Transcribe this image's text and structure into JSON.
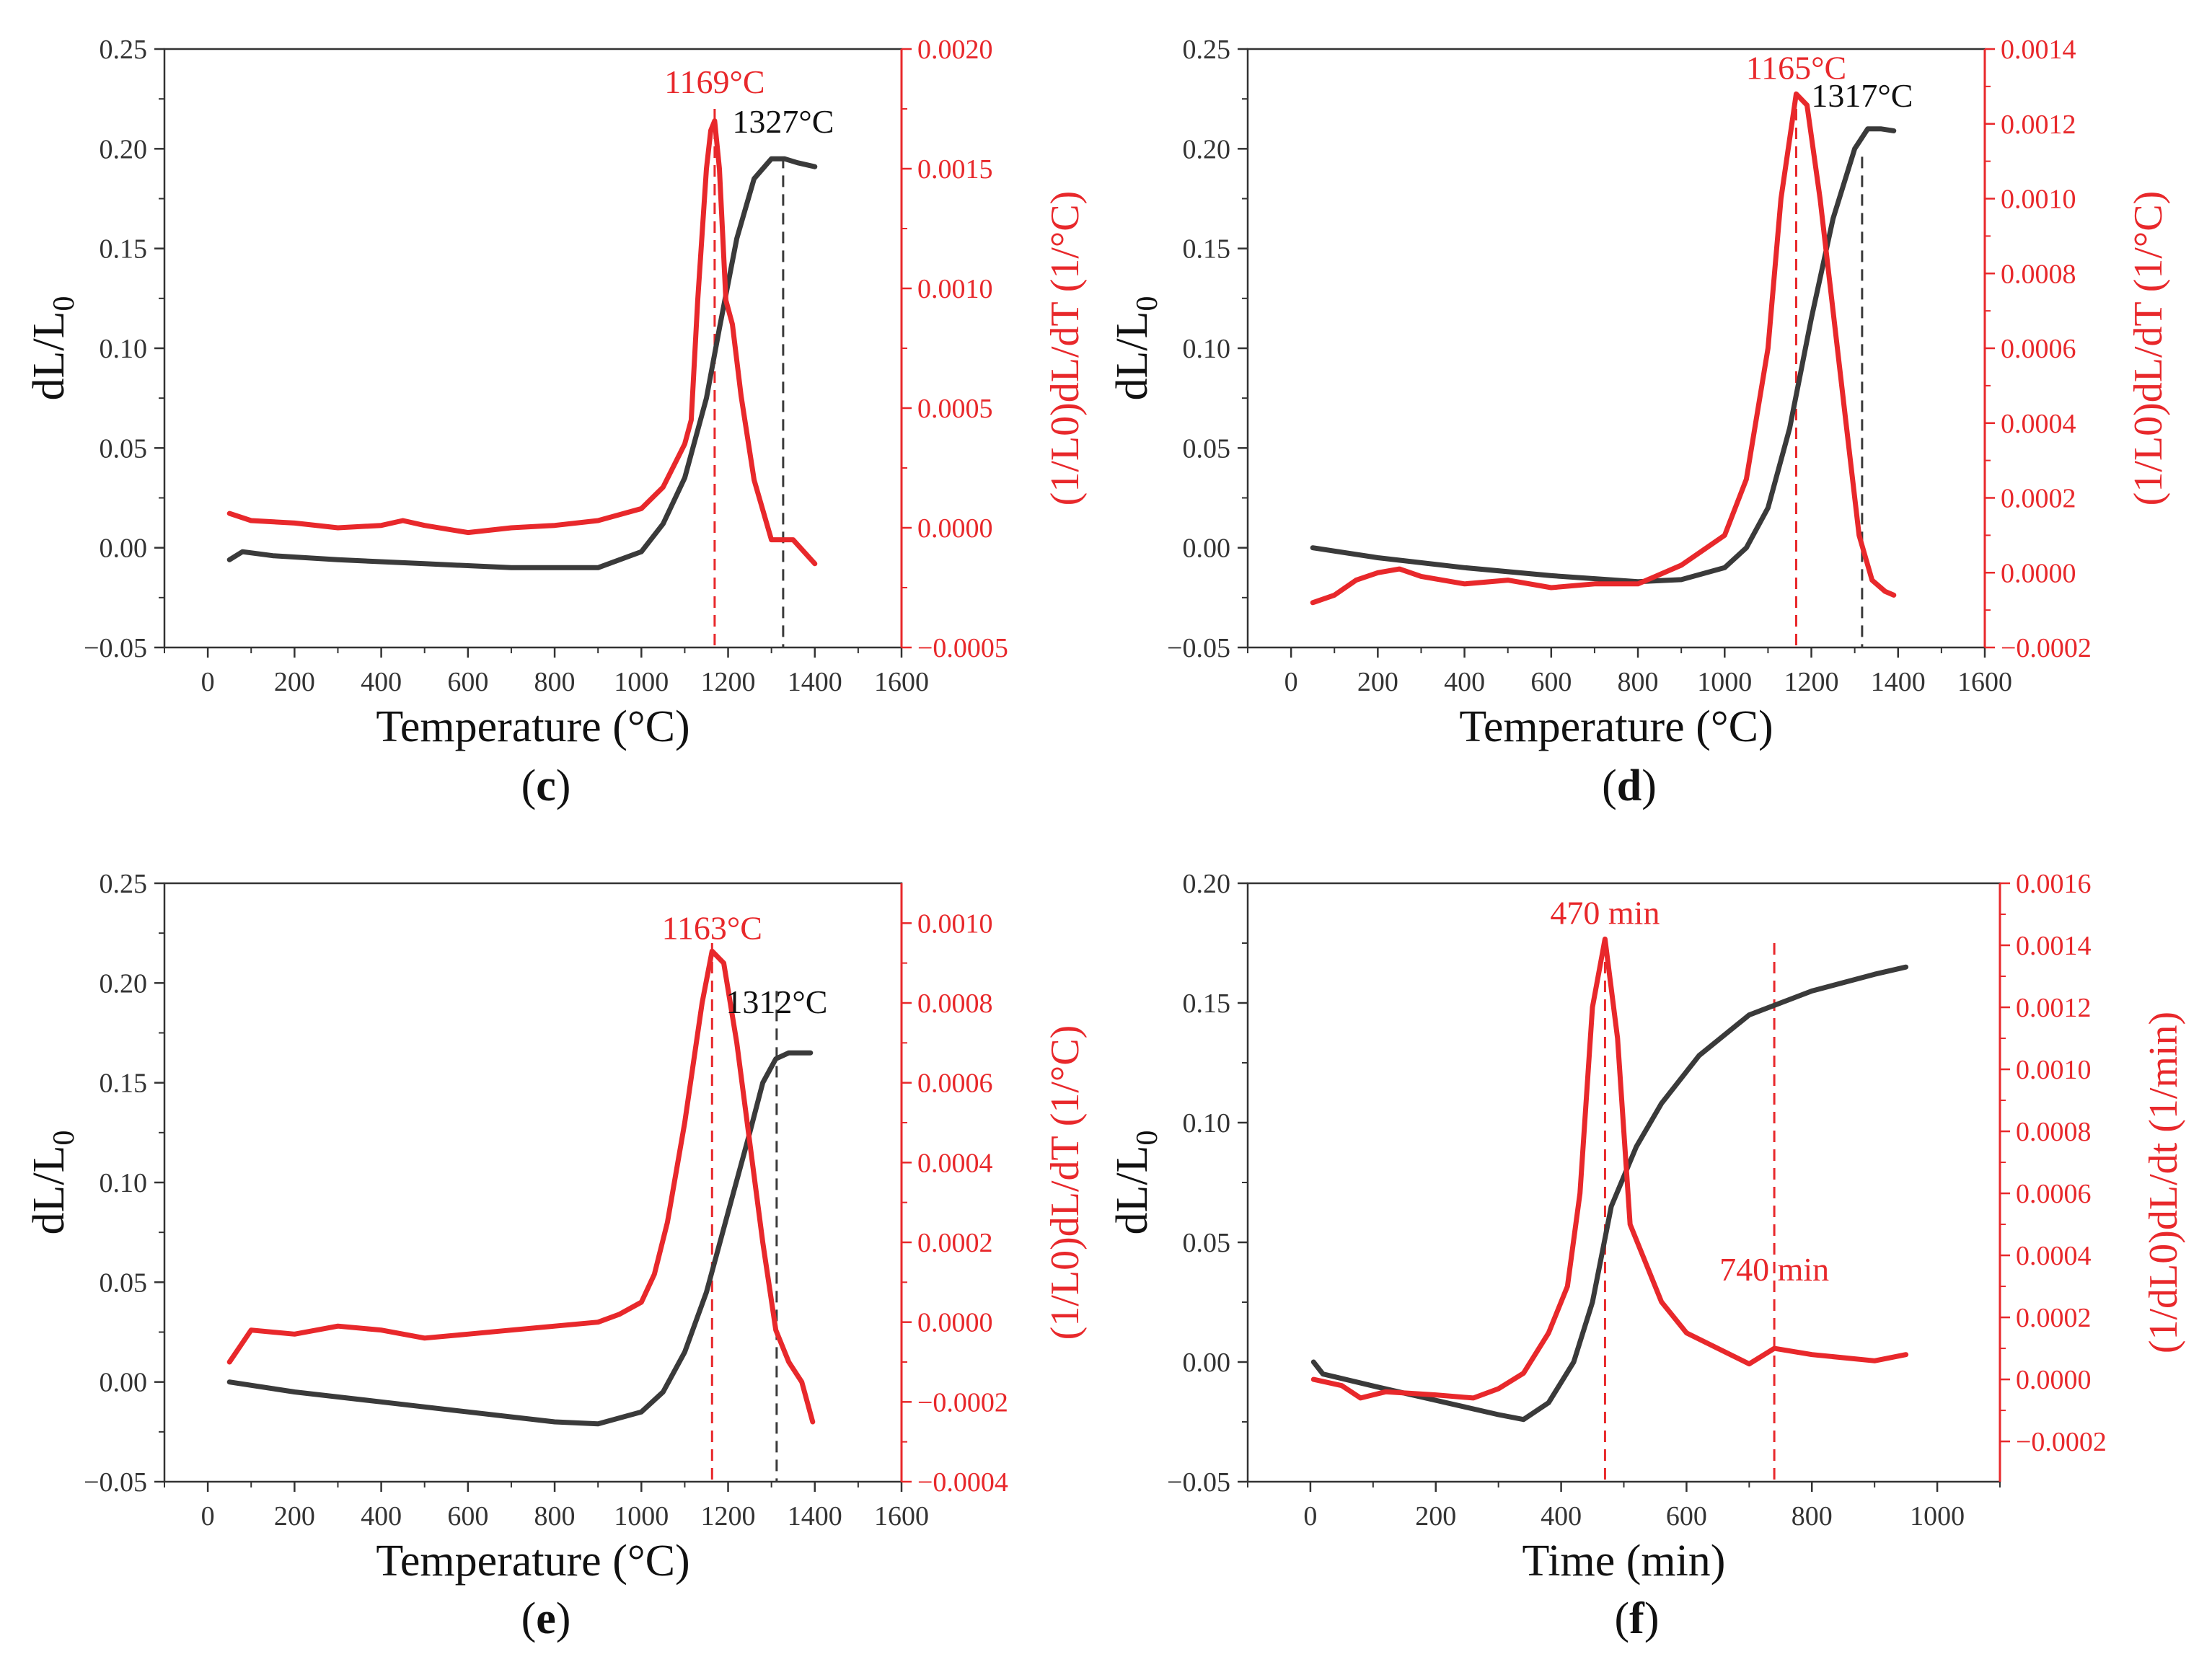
{
  "colors": {
    "black_series": "#3a3a3a",
    "red_series": "#e8282b",
    "axis": "#333333"
  },
  "chart_data": [
    {
      "panel_id": "c",
      "panel_label": {
        "open": "(",
        "letter": "c",
        "close": ")"
      },
      "type": "line",
      "xlabel": "Temperature (°C)",
      "ylabel": {
        "main": "dL/L",
        "sub": "0"
      },
      "y2label": "(1/L0)dL/dT (1/°C)",
      "xlim": [
        -100,
        1600
      ],
      "xticks": [
        0,
        200,
        400,
        600,
        800,
        1000,
        1200,
        1400,
        1600
      ],
      "xtick_labels": [
        "0",
        "200",
        "400",
        "600",
        "800",
        "1000",
        "1200",
        "1400",
        "1600"
      ],
      "ylim": [
        -0.05,
        0.25
      ],
      "yticks": [
        -0.05,
        0.0,
        0.05,
        0.1,
        0.15,
        0.2,
        0.25
      ],
      "ytick_labels": [
        "−0.05",
        "0.00",
        "0.05",
        "0.10",
        "0.15",
        "0.20",
        "0.25"
      ],
      "y2lim": [
        -0.0005,
        0.002
      ],
      "y2ticks": [
        -0.0005,
        0.0,
        0.0005,
        0.001,
        0.0015,
        0.002
      ],
      "y2tick_labels": [
        "−0.0005",
        "0.0000",
        "0.0005",
        "0.0010",
        "0.0015",
        "0.0020"
      ],
      "series": [
        {
          "name": "dL/L0",
          "axis": "left",
          "color": "#3a3a3a",
          "x": [
            50,
            80,
            150,
            300,
            500,
            700,
            900,
            1000,
            1050,
            1100,
            1150,
            1180,
            1220,
            1260,
            1300,
            1330,
            1360,
            1400
          ],
          "y": [
            -0.006,
            -0.002,
            -0.004,
            -0.006,
            -0.008,
            -0.01,
            -0.01,
            -0.002,
            0.012,
            0.035,
            0.075,
            0.11,
            0.155,
            0.185,
            0.195,
            0.195,
            0.193,
            0.191
          ]
        },
        {
          "name": "(1/L0)dL/dT",
          "axis": "right",
          "color": "#e8282b",
          "x": [
            50,
            100,
            200,
            300,
            400,
            450,
            500,
            600,
            700,
            800,
            900,
            1000,
            1050,
            1100,
            1115,
            1130,
            1150,
            1160,
            1169,
            1180,
            1195,
            1210,
            1230,
            1260,
            1300,
            1350,
            1400
          ],
          "y": [
            6e-05,
            3e-05,
            2e-05,
            0.0,
            1e-05,
            3e-05,
            1e-05,
            -2e-05,
            0.0,
            1e-05,
            3e-05,
            8e-05,
            0.00017,
            0.00035,
            0.00045,
            0.00095,
            0.0015,
            0.00166,
            0.0017,
            0.0015,
            0.00095,
            0.00085,
            0.00055,
            0.0002,
            -5e-05,
            -5e-05,
            -0.00015
          ]
        }
      ],
      "vlines": [
        {
          "x": 1169,
          "color": "#e8282b"
        },
        {
          "x": 1327,
          "color": "#3a3a3a"
        }
      ],
      "annotations": [
        {
          "text": "1169°C",
          "x": 1169,
          "y": 0.228,
          "color": "red"
        },
        {
          "text": "1327°C",
          "x": 1327,
          "y": 0.208,
          "color": "black"
        }
      ]
    },
    {
      "panel_id": "d",
      "panel_label": {
        "open": "(",
        "letter": "d",
        "close": ")"
      },
      "type": "line",
      "xlabel": "Temperature (°C)",
      "ylabel": {
        "main": "dL/L",
        "sub": "0"
      },
      "y2label": "(1/L0)dL/dT (1/°C)",
      "xlim": [
        -100,
        1600
      ],
      "xticks": [
        0,
        200,
        400,
        600,
        800,
        1000,
        1200,
        1400,
        1600
      ],
      "xtick_labels": [
        "0",
        "200",
        "400",
        "600",
        "800",
        "1000",
        "1200",
        "1400",
        "1600"
      ],
      "ylim": [
        -0.05,
        0.25
      ],
      "yticks": [
        -0.05,
        0.0,
        0.05,
        0.1,
        0.15,
        0.2,
        0.25
      ],
      "ytick_labels": [
        "−0.05",
        "0.00",
        "0.05",
        "0.10",
        "0.15",
        "0.20",
        "0.25"
      ],
      "y2lim": [
        -0.0002,
        0.0014
      ],
      "y2ticks": [
        -0.0002,
        0.0,
        0.0002,
        0.0004,
        0.0006,
        0.0008,
        0.001,
        0.0012,
        0.0014
      ],
      "y2tick_labels": [
        "−0.0002",
        "0.0000",
        "0.0002",
        "0.0004",
        "0.0006",
        "0.0008",
        "0.0010",
        "0.0012",
        "0.0014"
      ],
      "series": [
        {
          "name": "dL/L0",
          "axis": "left",
          "color": "#3a3a3a",
          "x": [
            50,
            200,
            400,
            600,
            800,
            900,
            1000,
            1050,
            1100,
            1150,
            1200,
            1250,
            1300,
            1330,
            1360,
            1390
          ],
          "y": [
            0.0,
            -0.005,
            -0.01,
            -0.014,
            -0.017,
            -0.016,
            -0.01,
            0.0,
            0.02,
            0.06,
            0.115,
            0.165,
            0.2,
            0.21,
            0.21,
            0.209
          ]
        },
        {
          "name": "(1/L0)dL/dT",
          "axis": "right",
          "color": "#e8282b",
          "x": [
            50,
            100,
            150,
            200,
            250,
            300,
            400,
            500,
            600,
            700,
            800,
            900,
            1000,
            1050,
            1100,
            1130,
            1165,
            1190,
            1220,
            1250,
            1280,
            1310,
            1340,
            1370,
            1390
          ],
          "y": [
            -8e-05,
            -6e-05,
            -2e-05,
            0.0,
            1e-05,
            -1e-05,
            -3e-05,
            -2e-05,
            -4e-05,
            -3e-05,
            -3e-05,
            2e-05,
            0.0001,
            0.00025,
            0.0006,
            0.001,
            0.00128,
            0.00125,
            0.001,
            0.0007,
            0.0004,
            0.0001,
            -2e-05,
            -5e-05,
            -6e-05
          ]
        }
      ],
      "vlines": [
        {
          "x": 1165,
          "color": "#e8282b"
        },
        {
          "x": 1317,
          "color": "#3a3a3a"
        }
      ],
      "annotations": [
        {
          "text": "1165°C",
          "x": 1165,
          "y": 0.235,
          "color": "red"
        },
        {
          "text": "1317°C",
          "x": 1317,
          "y": 0.221,
          "color": "black"
        }
      ]
    },
    {
      "panel_id": "e",
      "panel_label": {
        "open": "(",
        "letter": "e",
        "close": ")"
      },
      "type": "line",
      "xlabel": "Temperature (°C)",
      "ylabel": {
        "main": "dL/L",
        "sub": "0"
      },
      "y2label": "(1/L0)dL/dT (1/°C)",
      "xlim": [
        -100,
        1600
      ],
      "xticks": [
        0,
        200,
        400,
        600,
        800,
        1000,
        1200,
        1400,
        1600
      ],
      "xtick_labels": [
        "0",
        "200",
        "400",
        "600",
        "800",
        "1000",
        "1200",
        "1400",
        "1600"
      ],
      "ylim": [
        -0.05,
        0.25
      ],
      "yticks": [
        -0.05,
        0.0,
        0.05,
        0.1,
        0.15,
        0.2,
        0.25
      ],
      "ytick_labels": [
        "−0.05",
        "0.00",
        "0.05",
        "0.10",
        "0.15",
        "0.20",
        "0.25"
      ],
      "y2lim": [
        -0.0004,
        0.0011
      ],
      "y2ticks": [
        -0.0004,
        -0.0002,
        0.0,
        0.0002,
        0.0004,
        0.0006,
        0.0008,
        0.001
      ],
      "y2tick_labels": [
        "−0.0004",
        "−0.0002",
        "0.0000",
        "0.0002",
        "0.0004",
        "0.0006",
        "0.0008",
        "0.0010"
      ],
      "series": [
        {
          "name": "dL/L0",
          "axis": "left",
          "color": "#3a3a3a",
          "x": [
            50,
            200,
            400,
            600,
            800,
            900,
            1000,
            1050,
            1100,
            1150,
            1200,
            1250,
            1280,
            1310,
            1340,
            1370,
            1390
          ],
          "y": [
            0.0,
            -0.005,
            -0.01,
            -0.015,
            -0.02,
            -0.021,
            -0.015,
            -0.005,
            0.015,
            0.045,
            0.085,
            0.125,
            0.15,
            0.162,
            0.165,
            0.165,
            0.165
          ]
        },
        {
          "name": "(1/L0)dL/dT",
          "axis": "right",
          "color": "#e8282b",
          "x": [
            50,
            100,
            200,
            300,
            400,
            500,
            600,
            700,
            800,
            900,
            950,
            1000,
            1030,
            1060,
            1100,
            1140,
            1163,
            1190,
            1220,
            1250,
            1280,
            1310,
            1340,
            1370,
            1395
          ],
          "y": [
            -0.0001,
            -2e-05,
            -3e-05,
            -1e-05,
            -2e-05,
            -4e-05,
            -3e-05,
            -2e-05,
            -1e-05,
            0.0,
            2e-05,
            5e-05,
            0.00012,
            0.00025,
            0.0005,
            0.0008,
            0.00093,
            0.0009,
            0.0007,
            0.00045,
            0.0002,
            -2e-05,
            -0.0001,
            -0.00015,
            -0.00025
          ]
        }
      ],
      "vlines": [
        {
          "x": 1163,
          "color": "#e8282b"
        },
        {
          "x": 1312,
          "color": "#3a3a3a"
        }
      ],
      "annotations": [
        {
          "text": "1163°C",
          "x": 1163,
          "y": 0.222,
          "color": "red"
        },
        {
          "text": "1312°C",
          "x": 1312,
          "y": 0.185,
          "color": "black"
        }
      ]
    },
    {
      "panel_id": "f",
      "panel_label": {
        "open": "(",
        "letter": "f",
        "close": ")"
      },
      "type": "line",
      "xlabel": "Time (min)",
      "ylabel": {
        "main": "dL/L",
        "sub": "0"
      },
      "y2label": "(1/dL0)dL/dt (1/min)",
      "xlim": [
        -100,
        1100
      ],
      "xticks": [
        0,
        200,
        400,
        600,
        800,
        1000
      ],
      "xtick_labels": [
        "0",
        "200",
        "400",
        "600",
        "800",
        "1000"
      ],
      "ylim": [
        -0.05,
        0.2
      ],
      "yticks": [
        -0.05,
        0.0,
        0.05,
        0.1,
        0.15,
        0.2
      ],
      "ytick_labels": [
        "−0.05",
        "0.00",
        "0.05",
        "0.10",
        "0.15",
        "0.20"
      ],
      "y2lim": [
        -0.00033,
        0.0016
      ],
      "y2ticks": [
        -0.0002,
        0.0,
        0.0002,
        0.0004,
        0.0006,
        0.0008,
        0.001,
        0.0012,
        0.0014,
        0.0016
      ],
      "y2tick_labels": [
        "−0.0002",
        "0.0000",
        "0.0002",
        "0.0004",
        "0.0006",
        "0.0008",
        "0.0010",
        "0.0012",
        "0.0014",
        "0.0016"
      ],
      "series": [
        {
          "name": "dL/L0",
          "axis": "left",
          "color": "#3a3a3a",
          "x": [
            5,
            20,
            100,
            200,
            300,
            340,
            380,
            420,
            450,
            480,
            520,
            560,
            620,
            700,
            800,
            900,
            950
          ],
          "y": [
            0.0,
            -0.005,
            -0.01,
            -0.016,
            -0.022,
            -0.024,
            -0.017,
            0.0,
            0.025,
            0.065,
            0.09,
            0.108,
            0.128,
            0.145,
            0.155,
            0.162,
            0.165
          ]
        },
        {
          "name": "(1/dL0)dL/dt",
          "axis": "right",
          "color": "#e8282b",
          "x": [
            5,
            50,
            80,
            120,
            200,
            260,
            300,
            340,
            380,
            410,
            430,
            450,
            470,
            490,
            510,
            530,
            560,
            600,
            650,
            700,
            740,
            800,
            850,
            900,
            950
          ],
          "y": [
            0.0,
            -2e-05,
            -6e-05,
            -4e-05,
            -5e-05,
            -6e-05,
            -3e-05,
            2e-05,
            0.00015,
            0.0003,
            0.0006,
            0.0012,
            0.00142,
            0.0011,
            0.0005,
            0.0004,
            0.00025,
            0.00015,
            0.0001,
            5e-05,
            0.0001,
            8e-05,
            7e-05,
            6e-05,
            8e-05
          ]
        }
      ],
      "vlines": [
        {
          "x": 470,
          "color": "#e8282b"
        },
        {
          "x": 740,
          "color": "#e8282b"
        }
      ],
      "annotations": [
        {
          "text": "470 min",
          "x": 470,
          "y": 0.183,
          "color": "red"
        },
        {
          "text": "740 min",
          "x": 740,
          "y": 0.034,
          "color": "red"
        }
      ]
    }
  ]
}
